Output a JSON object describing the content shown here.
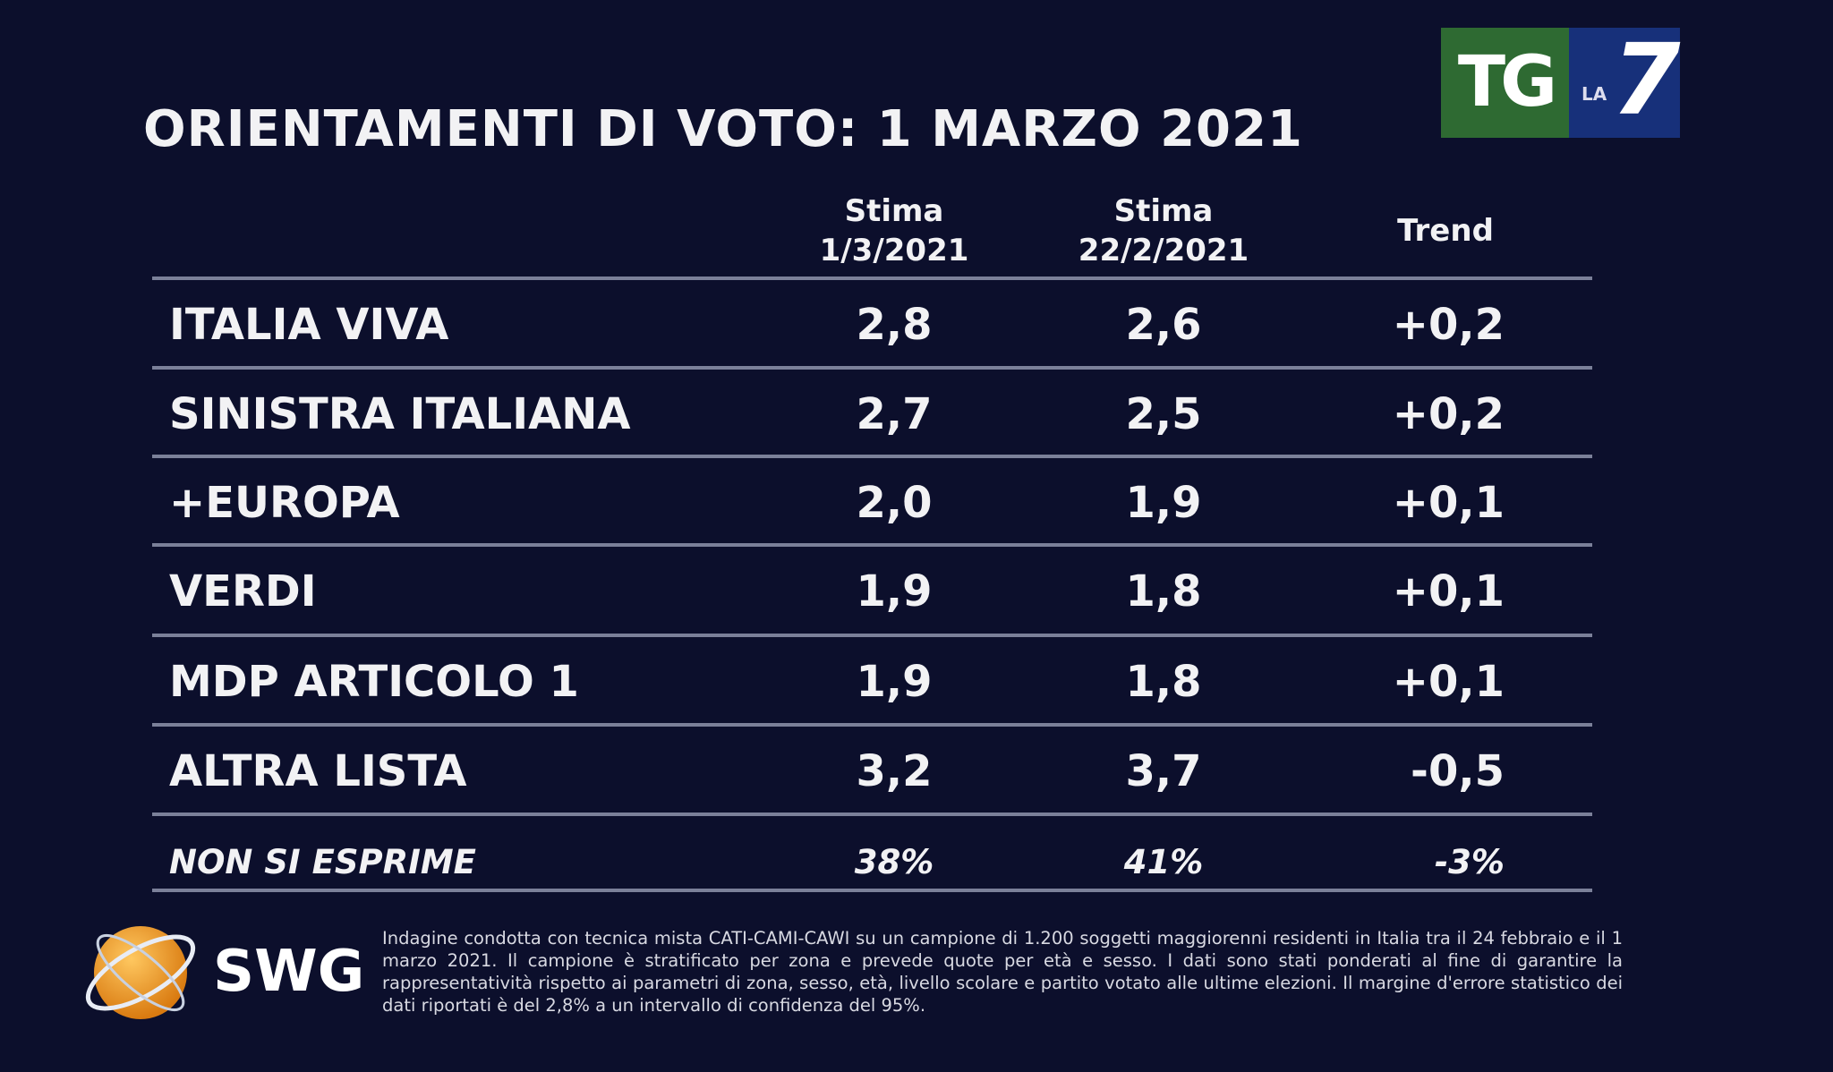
{
  "title": "ORIENTAMENTI DI VOTO: 1 MARZO 2021",
  "columns": [
    {
      "line1": "Stima",
      "line2": "1/3/2021"
    },
    {
      "line1": "Stima",
      "line2": "22/2/2021"
    },
    {
      "line1": "Trend"
    }
  ],
  "rows": [
    {
      "party": "ITALIA VIVA",
      "current": "2,8",
      "previous": "2,6",
      "trend": "+0,2"
    },
    {
      "party": "SINISTRA ITALIANA",
      "current": "2,7",
      "previous": "2,5",
      "trend": "+0,2"
    },
    {
      "party": "+EUROPA",
      "current": "2,0",
      "previous": "1,9",
      "trend": "+0,1"
    },
    {
      "party": "VERDI",
      "current": "1,9",
      "previous": "1,8",
      "trend": "+0,1"
    },
    {
      "party": "MDP ARTICOLO 1",
      "current": "1,9",
      "previous": "1,8",
      "trend": "+0,1"
    },
    {
      "party": "ALTRA LISTA",
      "current": "3,2",
      "previous": "3,7",
      "trend": "-0,5"
    },
    {
      "party": "NON SI ESPRIME",
      "current": "38%",
      "previous": "41%",
      "trend": "-3%"
    }
  ],
  "broadcaster_logo": {
    "tg": "TG",
    "la": "LA",
    "seven": "7",
    "colors": {
      "green": "#2e6a32",
      "blue": "#17307a"
    }
  },
  "pollster_logo": {
    "name": "SWG",
    "globe_color": "#f0a030"
  },
  "footnote": "Indagine condotta con tecnica mista CATI-CAMI-CAWI su un campione di 1.200 soggetti maggiorenni residenti in Italia tra il 24 febbraio e il 1 marzo 2021. Il campione è stratificato per zona e prevede quote per età e sesso. I dati sono stati ponderati al fine di garantire la rappresentatività rispetto ai parametri di zona, sesso, età, livello scolare e partito votato alle ultime elezioni. Il margine d'errore statistico dei dati riportati è del 2,8% a un intervallo di confidenza del 95%.",
  "colors": {
    "background": "#0c0f2c",
    "text": "#f2f2f4",
    "divider": "#7b8099"
  }
}
